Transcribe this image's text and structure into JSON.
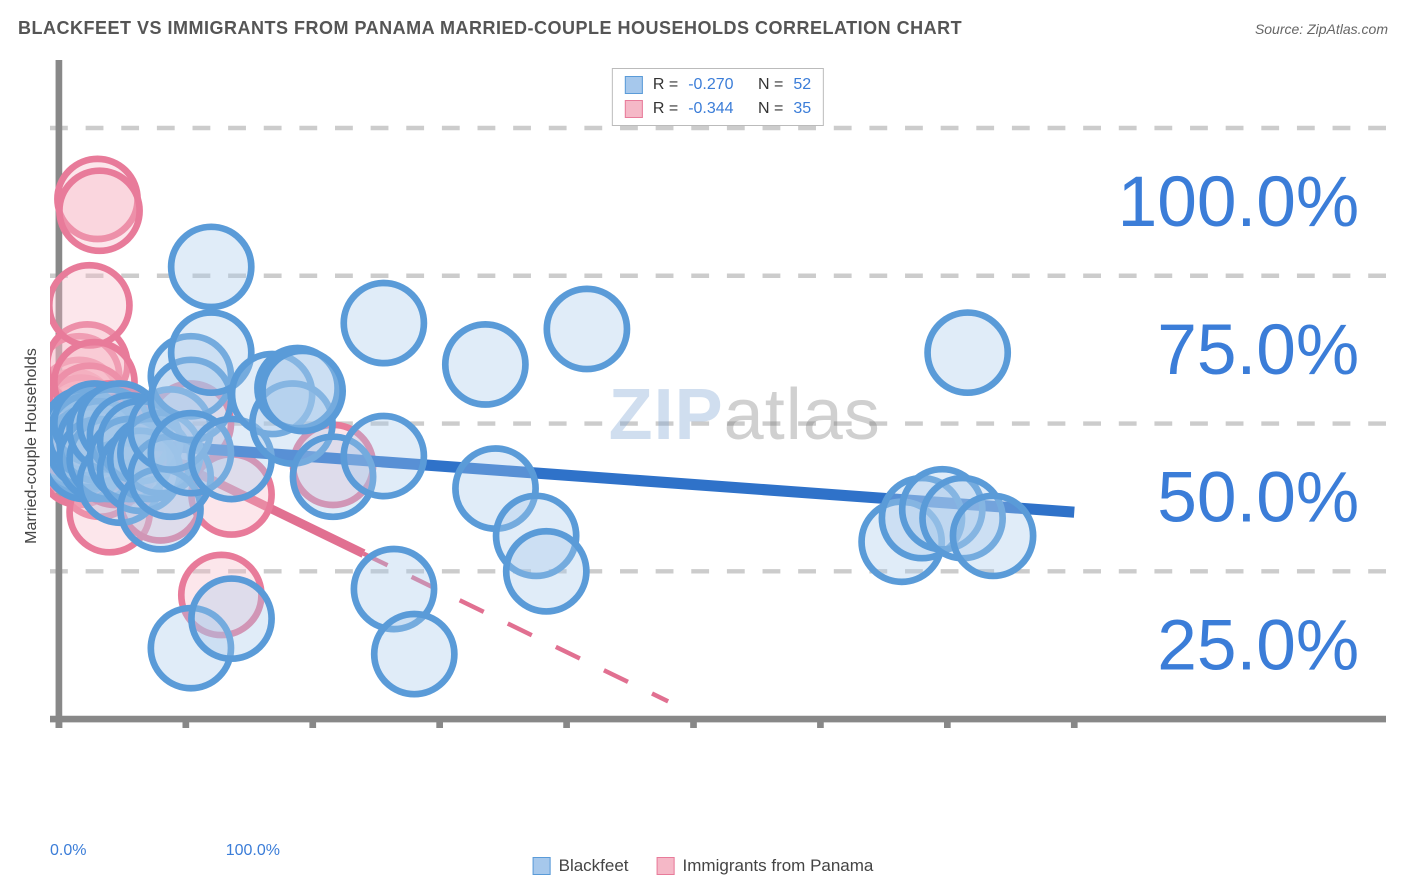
{
  "header": {
    "title": "BLACKFEET VS IMMIGRANTS FROM PANAMA MARRIED-COUPLE HOUSEHOLDS CORRELATION CHART",
    "source": "Source: ZipAtlas.com"
  },
  "ylabel": "Married-couple Households",
  "watermark": {
    "part1": "ZIP",
    "part2": "atlas"
  },
  "chart": {
    "type": "scatter",
    "xlim": [
      0,
      100
    ],
    "ylim": [
      0,
      110
    ],
    "xticks": [
      0,
      12.5,
      25,
      37.5,
      50,
      62.5,
      75,
      87.5,
      100
    ],
    "xtick_labels": {
      "0": "0.0%",
      "100": "100.0%"
    },
    "yticks": [
      0,
      25,
      50,
      75,
      100
    ],
    "ytick_labels": {
      "25": "25.0%",
      "50": "50.0%",
      "75": "75.0%",
      "100": "100.0%"
    },
    "grid_color": "#cccccc",
    "axis_color": "#888888",
    "tick_label_color": "#3b7dd8",
    "tick_label_fontsize": 16,
    "background_color": "#ffffff",
    "marker_radius": 9
  },
  "series": {
    "blackfeet": {
      "label": "Blackfeet",
      "R": "-0.270",
      "N": "52",
      "fill": "#a6c8ec",
      "stroke": "#5a9bd8",
      "line_color": "#2f72c9",
      "line_width": 2.5,
      "trend": {
        "x1": 0,
        "y1": 47.5,
        "x2": 100,
        "y2": 35
      },
      "points": [
        [
          1,
          47
        ],
        [
          1.5,
          46
        ],
        [
          2,
          48
        ],
        [
          2,
          45
        ],
        [
          2.5,
          49
        ],
        [
          2.5,
          44
        ],
        [
          3,
          46
        ],
        [
          3,
          48
        ],
        [
          3.5,
          50
        ],
        [
          4,
          47
        ],
        [
          4,
          44
        ],
        [
          5,
          44
        ],
        [
          5,
          49
        ],
        [
          6,
          50
        ],
        [
          6,
          40
        ],
        [
          7,
          48
        ],
        [
          7,
          44
        ],
        [
          8,
          47
        ],
        [
          8,
          42
        ],
        [
          9,
          44
        ],
        [
          10,
          45
        ],
        [
          10,
          35.5
        ],
        [
          11,
          41
        ],
        [
          11,
          49
        ],
        [
          13,
          58
        ],
        [
          13,
          54
        ],
        [
          13,
          45
        ],
        [
          13,
          12
        ],
        [
          15,
          62
        ],
        [
          15,
          76.5
        ],
        [
          17,
          44
        ],
        [
          17,
          17
        ],
        [
          21,
          55
        ],
        [
          23,
          50
        ],
        [
          23.5,
          56
        ],
        [
          24,
          55.5
        ],
        [
          27,
          41
        ],
        [
          32,
          44.5
        ],
        [
          32,
          67
        ],
        [
          33,
          22
        ],
        [
          35,
          11
        ],
        [
          42,
          60
        ],
        [
          43,
          39
        ],
        [
          47,
          31
        ],
        [
          48,
          25
        ],
        [
          52,
          66
        ],
        [
          83,
          30
        ],
        [
          85,
          34
        ],
        [
          87,
          35.5
        ],
        [
          89,
          34
        ],
        [
          89.5,
          62
        ],
        [
          92,
          31
        ]
      ]
    },
    "panama": {
      "label": "Immigrants from Panama",
      "R": "-0.344",
      "N": "35",
      "fill": "#f5b8c7",
      "stroke": "#e87b9a",
      "line_color": "#e17091",
      "line_width": 2,
      "trend": {
        "x1": 0,
        "y1": 53,
        "x2": 30,
        "y2": 28
      },
      "trend_dash": {
        "x1": 30,
        "y1": 28,
        "x2": 60,
        "y2": 3
      },
      "points": [
        [
          1,
          46
        ],
        [
          1,
          48
        ],
        [
          1.2,
          50
        ],
        [
          1.5,
          45
        ],
        [
          1.5,
          52
        ],
        [
          1.8,
          47
        ],
        [
          2,
          43
        ],
        [
          2,
          54
        ],
        [
          2,
          58
        ],
        [
          2.2,
          51
        ],
        [
          2.5,
          46
        ],
        [
          2.5,
          49
        ],
        [
          2.8,
          60
        ],
        [
          3,
          53
        ],
        [
          3,
          70
        ],
        [
          3.2,
          48
        ],
        [
          3.5,
          45
        ],
        [
          3.5,
          57
        ],
        [
          3.8,
          88
        ],
        [
          4,
          86
        ],
        [
          4,
          41
        ],
        [
          4.5,
          47
        ],
        [
          5,
          50
        ],
        [
          5,
          35
        ],
        [
          5.5,
          43
        ],
        [
          5.5,
          49
        ],
        [
          6,
          46
        ],
        [
          6.5,
          48
        ],
        [
          7,
          44
        ],
        [
          7,
          47
        ],
        [
          10,
          37
        ],
        [
          13,
          50
        ],
        [
          16,
          21
        ],
        [
          17,
          38
        ],
        [
          27,
          43
        ]
      ]
    }
  },
  "legend_top": {
    "r_label": "R =",
    "n_label": "N ="
  }
}
